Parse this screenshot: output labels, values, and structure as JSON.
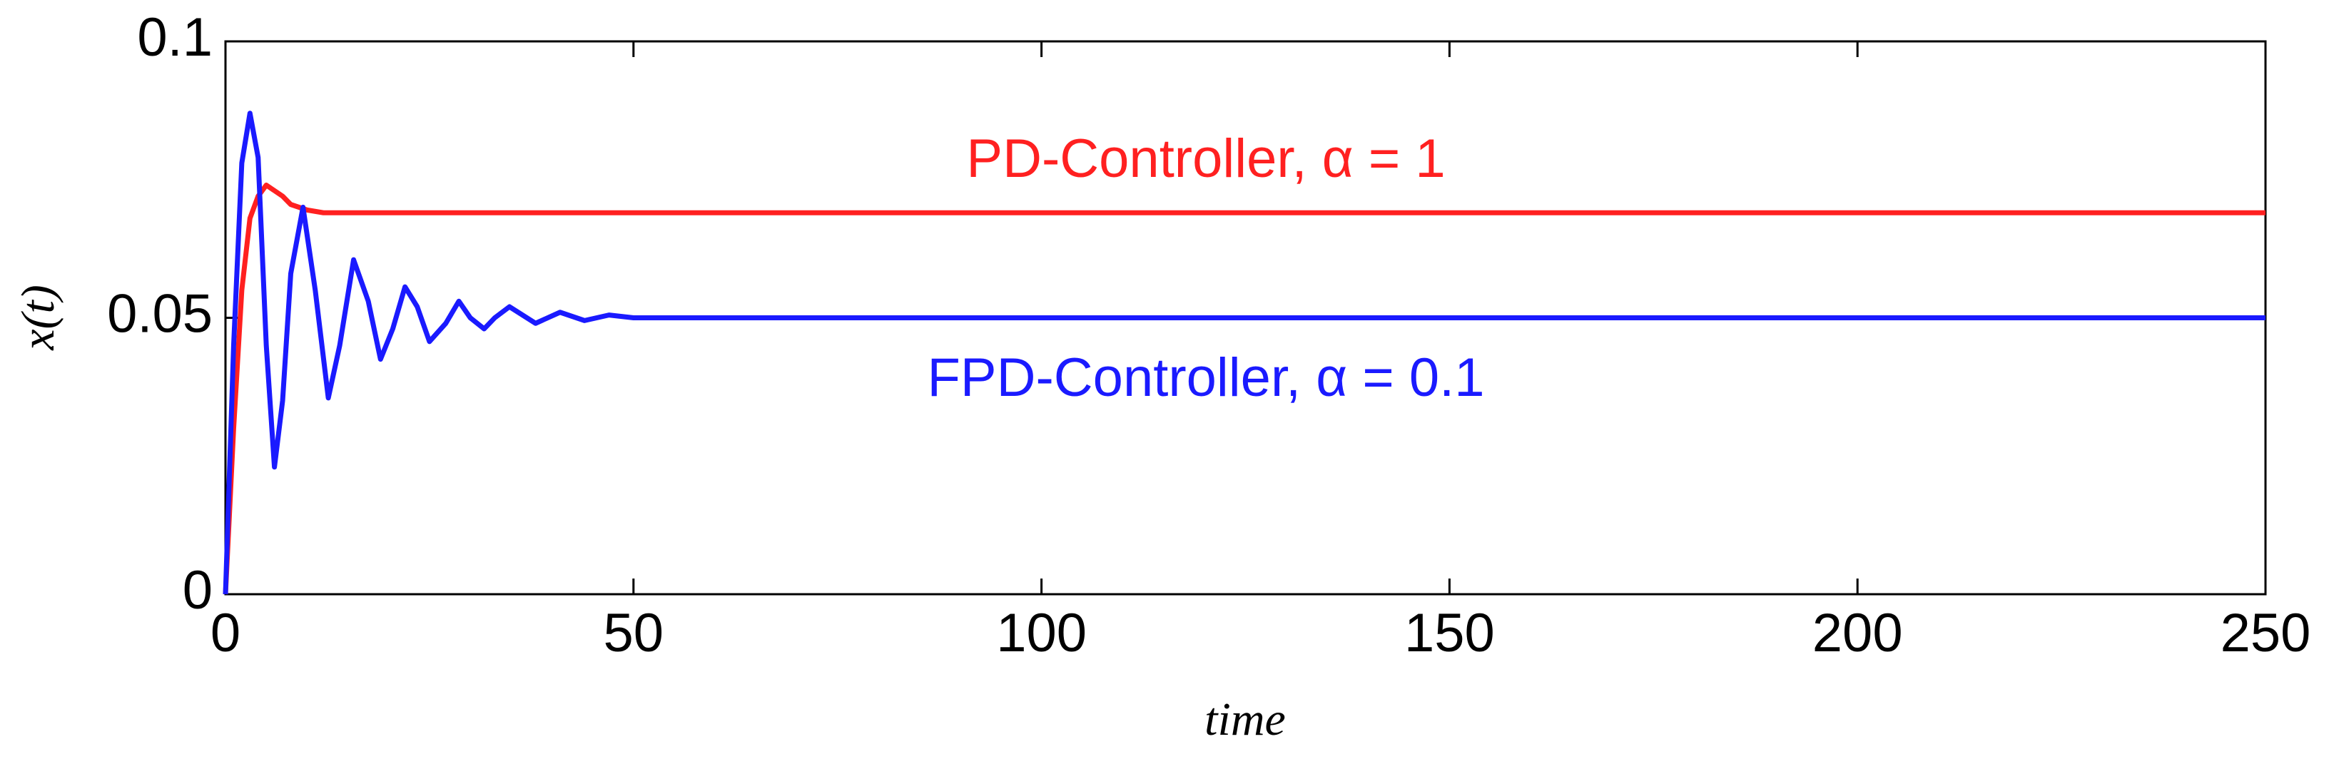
{
  "chart_data": {
    "type": "line",
    "x_label": "time",
    "y_label": "x(t)",
    "xlim": [
      0,
      250
    ],
    "xticks": [
      0,
      50,
      100,
      150,
      200,
      250
    ],
    "ylim": [
      0,
      0.1
    ],
    "yticks": [
      0,
      0.05,
      0.1
    ],
    "series": [
      {
        "name": "PD-Controller, α = 1",
        "color": "#ff2020",
        "x": [
          0,
          1,
          2,
          3,
          4,
          5,
          6,
          7,
          8,
          10,
          12,
          15,
          250
        ],
        "values": [
          0,
          0.03,
          0.055,
          0.068,
          0.072,
          0.074,
          0.073,
          0.072,
          0.0705,
          0.0695,
          0.069,
          0.069,
          0.069
        ]
      },
      {
        "name": "FPD-Controller, α = 0.1",
        "color": "#1a1aff",
        "x": [
          0,
          1,
          2,
          3,
          4,
          5,
          6,
          7,
          8,
          9.5,
          11,
          12.6,
          14,
          15.7,
          17.5,
          19,
          20.5,
          22,
          23.5,
          25,
          27,
          28.6,
          30,
          31.7,
          33,
          34.8,
          38,
          41,
          44,
          47,
          50,
          250
        ],
        "values": [
          0,
          0.045,
          0.078,
          0.087,
          0.079,
          0.045,
          0.023,
          0.035,
          0.058,
          0.07,
          0.055,
          0.0355,
          0.045,
          0.0605,
          0.053,
          0.0425,
          0.048,
          0.0556,
          0.052,
          0.0457,
          0.049,
          0.053,
          0.05,
          0.048,
          0.05,
          0.052,
          0.049,
          0.051,
          0.0495,
          0.0505,
          0.05,
          0.05
        ]
      }
    ]
  }
}
